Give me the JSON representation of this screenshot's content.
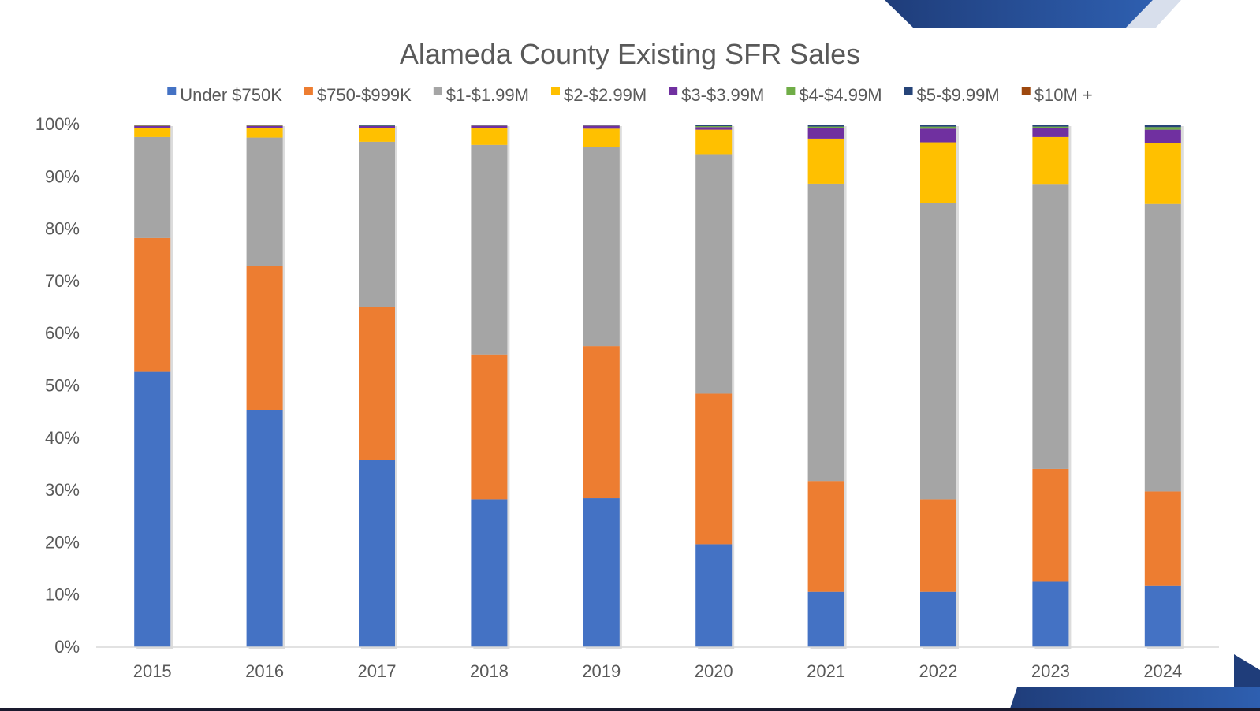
{
  "chart_data": {
    "type": "bar",
    "stacked": true,
    "percent_stacked": true,
    "title": "Alameda County Existing SFR Sales",
    "xlabel": "",
    "ylabel": "",
    "ylim": [
      0,
      100
    ],
    "y_ticks": [
      "0%",
      "10%",
      "20%",
      "30%",
      "40%",
      "50%",
      "60%",
      "70%",
      "80%",
      "90%",
      "100%"
    ],
    "legend_position": "top",
    "grid": false,
    "categories": [
      "2015",
      "2016",
      "2017",
      "2018",
      "2019",
      "2020",
      "2021",
      "2022",
      "2023",
      "2024"
    ],
    "series": [
      {
        "name": "Under $750K",
        "color": "#4472C4",
        "values": [
          52.7,
          45.4,
          35.8,
          28.3,
          28.5,
          19.7,
          10.6,
          10.6,
          12.6,
          11.8
        ]
      },
      {
        "name": "$750-$999K",
        "color": "#ED7D31",
        "values": [
          25.6,
          27.6,
          29.3,
          27.7,
          29.1,
          28.8,
          21.2,
          17.7,
          21.5,
          18.0
        ]
      },
      {
        "name": "$1-$1.99M",
        "color": "#A5A5A5",
        "values": [
          19.3,
          24.5,
          31.6,
          40.1,
          38.1,
          45.7,
          56.9,
          56.7,
          54.4,
          55.0
        ]
      },
      {
        "name": "$2-$2.99M",
        "color": "#FFC000",
        "values": [
          1.8,
          1.9,
          2.6,
          3.2,
          3.5,
          4.8,
          8.6,
          11.6,
          9.1,
          11.7
        ]
      },
      {
        "name": "$3-$3.99M",
        "color": "#7030A0",
        "values": [
          0.3,
          0.3,
          0.4,
          0.5,
          0.6,
          0.5,
          2.0,
          2.6,
          1.8,
          2.5
        ]
      },
      {
        "name": "$4-$4.99M",
        "color": "#70AD47",
        "values": [
          0.05,
          0.05,
          0.05,
          0.05,
          0.05,
          0.2,
          0.3,
          0.4,
          0.2,
          0.5
        ]
      },
      {
        "name": "$5-$9.99M",
        "color": "#264478",
        "values": [
          0.05,
          0.05,
          0.2,
          0.05,
          0.1,
          0.2,
          0.3,
          0.3,
          0.3,
          0.4
        ]
      },
      {
        "name": "$10M +",
        "color": "#9E480E",
        "values": [
          0.2,
          0.2,
          0.05,
          0.1,
          0.05,
          0.1,
          0.1,
          0.1,
          0.1,
          0.1
        ]
      }
    ]
  },
  "theme": {
    "axis_color": "#D9D9D9",
    "text_color": "#595959",
    "accent_dark": "#1F3D7A",
    "accent_mid": "#2E5BA8",
    "bar_shadow": "#BFBFBF"
  }
}
